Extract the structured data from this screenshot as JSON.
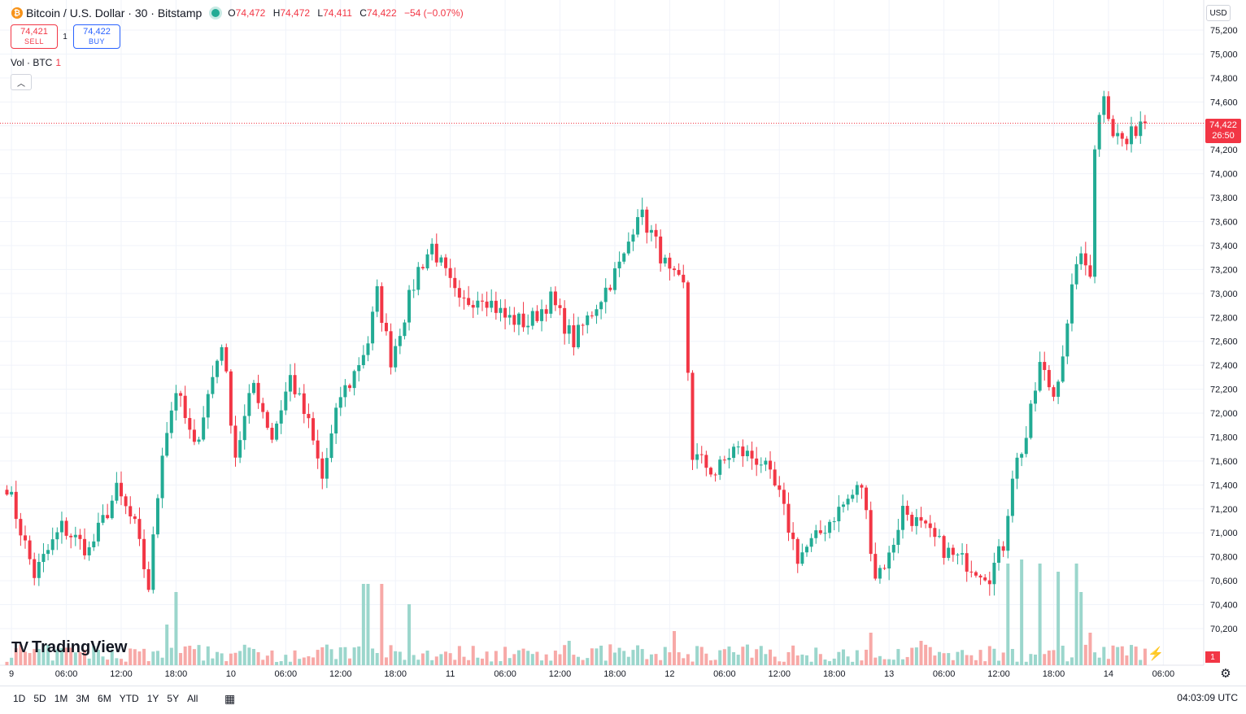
{
  "header": {
    "symbol": "Bitcoin / U.S. Dollar · 30 · Bitstamp",
    "coin_icon": "bitcoin-icon",
    "ohlc": {
      "o_label": "O",
      "o": "74,472",
      "h_label": "H",
      "h": "74,472",
      "l_label": "L",
      "l": "74,411",
      "c_label": "C",
      "c": "74,422",
      "change": "−54 (−0.07%)"
    },
    "sell": {
      "price": "74,421",
      "label": "SELL"
    },
    "buy": {
      "price": "74,422",
      "label": "BUY"
    },
    "spread": "1",
    "volume_label": "Vol · BTC",
    "volume_value": "1",
    "collapse_icon": "chevron-up-icon",
    "currency": "USD"
  },
  "price_tag": {
    "price": "74,422",
    "countdown": "26:50"
  },
  "volume_tag": "1",
  "logo": {
    "mark": "TV",
    "text": "TradingView"
  },
  "bottom": {
    "ranges": [
      "1D",
      "5D",
      "1M",
      "3M",
      "6M",
      "YTD",
      "1Y",
      "5Y",
      "All"
    ],
    "calendar_icon": "calendar-icon",
    "time": "04:03:09 UTC"
  },
  "colors": {
    "up": "#22ab94",
    "down": "#f23645",
    "vol_up": "#9bd6cc",
    "vol_down": "#f7a9a7",
    "grid": "#f0f3fa"
  },
  "chart_data": {
    "type": "candlestick",
    "symbol": "BTCUSD",
    "interval": "30",
    "y_ticks": [
      70200,
      70400,
      70600,
      70800,
      71000,
      71200,
      71400,
      71600,
      71800,
      72000,
      72200,
      72400,
      72600,
      72800,
      73000,
      73200,
      73400,
      73600,
      73800,
      74000,
      74200,
      74400,
      74600,
      74800,
      75000,
      75200
    ],
    "ylim": [
      70050,
      75330
    ],
    "x_ticks": [
      {
        "i": 1,
        "label": "9"
      },
      {
        "i": 13,
        "label": "06:00"
      },
      {
        "i": 25,
        "label": "12:00"
      },
      {
        "i": 37,
        "label": "18:00"
      },
      {
        "i": 49,
        "label": "10"
      },
      {
        "i": 61,
        "label": "06:00"
      },
      {
        "i": 73,
        "label": "12:00"
      },
      {
        "i": 85,
        "label": "18:00"
      },
      {
        "i": 97,
        "label": "11"
      },
      {
        "i": 109,
        "label": "06:00"
      },
      {
        "i": 121,
        "label": "12:00"
      },
      {
        "i": 133,
        "label": "18:00"
      },
      {
        "i": 145,
        "label": "12"
      },
      {
        "i": 157,
        "label": "06:00"
      },
      {
        "i": 169,
        "label": "12:00"
      },
      {
        "i": 181,
        "label": "18:00"
      },
      {
        "i": 193,
        "label": "13"
      },
      {
        "i": 205,
        "label": "06:00"
      },
      {
        "i": 217,
        "label": "12:00"
      },
      {
        "i": 229,
        "label": "18:00"
      },
      {
        "i": 241,
        "label": "14"
      },
      {
        "i": 253,
        "label": "06:00"
      }
    ],
    "last_price": 74422,
    "grid": true,
    "volume_panel": true,
    "path_points": [
      [
        0,
        71400
      ],
      [
        6,
        70650
      ],
      [
        12,
        71050
      ],
      [
        18,
        70850
      ],
      [
        24,
        71350
      ],
      [
        28,
        71050
      ],
      [
        31,
        70550
      ],
      [
        34,
        71700
      ],
      [
        37,
        72200
      ],
      [
        41,
        71700
      ],
      [
        45,
        72300
      ],
      [
        47,
        72600
      ],
      [
        50,
        71650
      ],
      [
        54,
        72250
      ],
      [
        58,
        71800
      ],
      [
        62,
        72300
      ],
      [
        66,
        71900
      ],
      [
        69,
        71450
      ],
      [
        73,
        72150
      ],
      [
        75,
        72250
      ],
      [
        79,
        72600
      ],
      [
        81,
        73000
      ],
      [
        84,
        72450
      ],
      [
        90,
        73200
      ],
      [
        93,
        73400
      ],
      [
        96,
        73150
      ],
      [
        99,
        72900
      ],
      [
        104,
        73000
      ],
      [
        109,
        72800
      ],
      [
        114,
        72750
      ],
      [
        119,
        72950
      ],
      [
        124,
        72600
      ],
      [
        128,
        72850
      ],
      [
        132,
        73100
      ],
      [
        135,
        73300
      ],
      [
        138,
        73700
      ],
      [
        141,
        73500
      ],
      [
        145,
        73150
      ],
      [
        148,
        73050
      ],
      [
        150,
        71650
      ],
      [
        155,
        71500
      ],
      [
        159,
        71700
      ],
      [
        165,
        71600
      ],
      [
        169,
        71300
      ],
      [
        173,
        70800
      ],
      [
        177,
        70950
      ],
      [
        181,
        71150
      ],
      [
        187,
        71400
      ],
      [
        190,
        70650
      ],
      [
        193,
        70800
      ],
      [
        196,
        71200
      ],
      [
        200,
        71050
      ],
      [
        204,
        70900
      ],
      [
        207,
        70800
      ],
      [
        210,
        70750
      ],
      [
        215,
        70650
      ],
      [
        218,
        70900
      ],
      [
        220,
        71500
      ],
      [
        223,
        71800
      ],
      [
        226,
        72400
      ],
      [
        229,
        72150
      ],
      [
        232,
        72700
      ],
      [
        234,
        73300
      ],
      [
        237,
        73200
      ],
      [
        238,
        74250
      ],
      [
        240,
        74700
      ],
      [
        242,
        74350
      ],
      [
        245,
        74250
      ],
      [
        248,
        74450
      ],
      [
        249,
        74422
      ]
    ],
    "volume_spikes": [
      {
        "i": 78,
        "v": 100
      },
      {
        "i": 79,
        "v": 100
      },
      {
        "i": 82,
        "v": 100
      },
      {
        "i": 88,
        "v": 75
      },
      {
        "i": 37,
        "v": 90
      },
      {
        "i": 35,
        "v": 50
      },
      {
        "i": 123,
        "v": 30
      },
      {
        "i": 146,
        "v": 42
      },
      {
        "i": 189,
        "v": 40
      },
      {
        "i": 219,
        "v": 125
      },
      {
        "i": 222,
        "v": 130
      },
      {
        "i": 226,
        "v": 125
      },
      {
        "i": 230,
        "v": 115
      },
      {
        "i": 234,
        "v": 125
      },
      {
        "i": 235,
        "v": 90
      },
      {
        "i": 237,
        "v": 40
      },
      {
        "i": 200,
        "v": 30
      }
    ]
  }
}
